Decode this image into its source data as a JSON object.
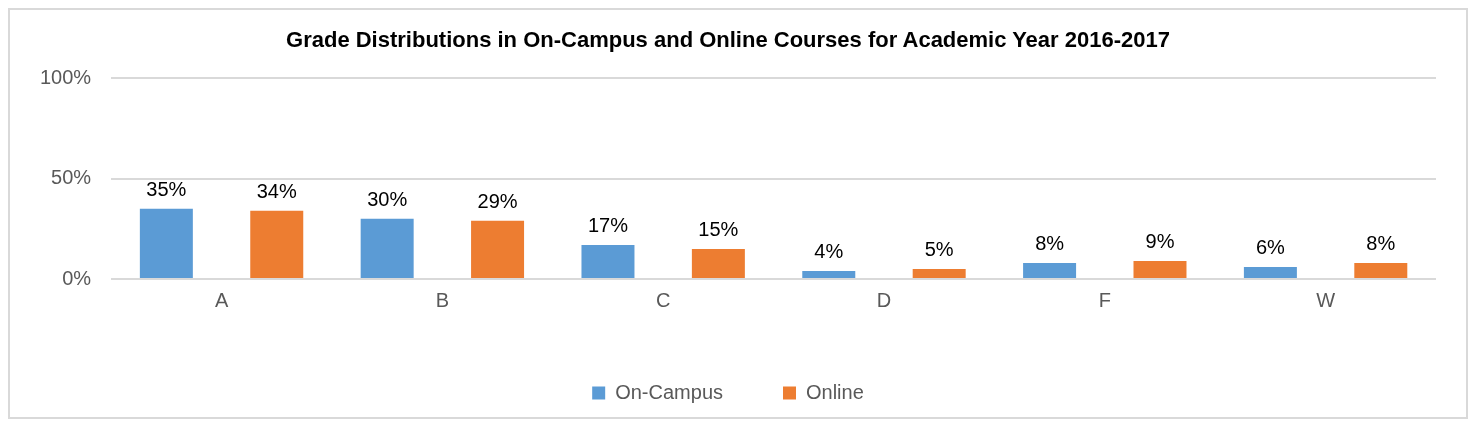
{
  "chart_data": {
    "type": "bar",
    "title": "Grade Distributions in On-Campus and Online Courses for Academic Year 2016-2017",
    "categories": [
      "A",
      "B",
      "C",
      "D",
      "F",
      "W"
    ],
    "series": [
      {
        "name": "On-Campus",
        "color": "#5b9bd5",
        "values": [
          35,
          30,
          17,
          4,
          8,
          6
        ],
        "value_labels": [
          "35%",
          "30%",
          "17%",
          "4%",
          "8%",
          "6%"
        ]
      },
      {
        "name": "Online",
        "color": "#ed7d31",
        "values": [
          34,
          29,
          15,
          5,
          9,
          8
        ],
        "value_labels": [
          "34%",
          "29%",
          "15%",
          "5%",
          "9%",
          "8%"
        ]
      }
    ],
    "ylim": [
      0,
      100
    ],
    "yticks": [
      {
        "value": 0,
        "label": "0%"
      },
      {
        "value": 50,
        "label": "50%"
      },
      {
        "value": 100,
        "label": "100%"
      }
    ],
    "grid": "y",
    "legend": "bottom"
  }
}
